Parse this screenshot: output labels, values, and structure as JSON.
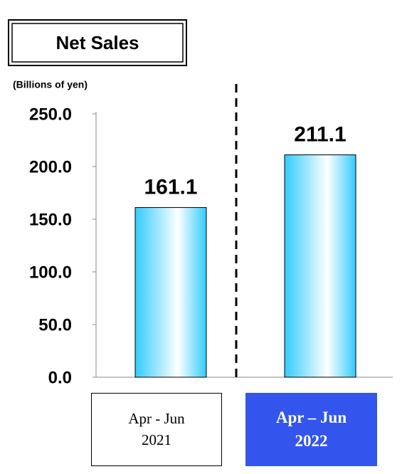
{
  "chart_data": {
    "type": "bar",
    "title": "Net Sales",
    "y_label": "(Billions of yen)",
    "categories": [
      "Apr - Jun 2021",
      "Apr – Jun 2022"
    ],
    "values": [
      161.1,
      211.1
    ],
    "color": "#33ccff",
    "category_box_colors": [
      "#ffffff",
      "#3355ee"
    ],
    "ylim": [
      0,
      250
    ],
    "yticks": [
      {
        "value": 0,
        "label": "0.0"
      },
      {
        "value": 50,
        "label": "50.0"
      },
      {
        "value": 100,
        "label": "100.0"
      },
      {
        "value": 150,
        "label": "150.0"
      },
      {
        "value": 200,
        "label": "200.0"
      },
      {
        "value": 250,
        "label": "250.0"
      }
    ]
  }
}
